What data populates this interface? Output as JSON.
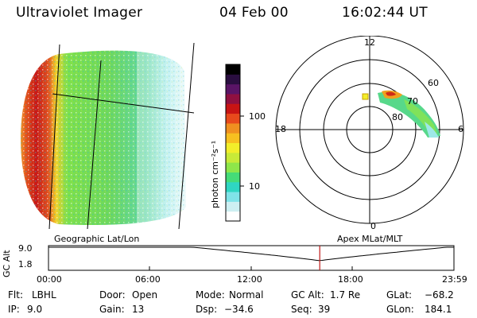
{
  "header": {
    "instrument": "Ultraviolet Imager",
    "date": "04 Feb 00",
    "time": "16:02:44 UT"
  },
  "images": {
    "geographic": {
      "caption": "Geographic Lat/Lon"
    },
    "polar": {
      "caption": "Apex MLat/MLT",
      "mlt_labels": {
        "top": "12",
        "left": "18",
        "right": "6",
        "bottom": "0"
      },
      "lat_labels": [
        "60",
        "70",
        "80"
      ]
    }
  },
  "colorbar": {
    "unit_label": "photon cm⁻²s⁻¹",
    "tick_high": "100",
    "tick_low": "10",
    "colors": [
      "#ffffff",
      "#cdeff2",
      "#7fe3e8",
      "#2fd6c2",
      "#45dc78",
      "#8ee64a",
      "#c8ea38",
      "#f2ee2a",
      "#f7c020",
      "#f09020",
      "#e84a1c",
      "#c81414",
      "#901040",
      "#5a1466",
      "#2a0e40",
      "#000000"
    ]
  },
  "timeline": {
    "y_axis_label": "GC Alt",
    "y_ticks": [
      "9.0",
      "1.8"
    ],
    "x_ticks": [
      "00:00",
      "06:00",
      "12:00",
      "18:00",
      "23:59"
    ],
    "cursor_time": "16:02:44",
    "cursor_color": "#c01818"
  },
  "info": {
    "row1": [
      {
        "label": "Flt:",
        "value": "LBHL"
      },
      {
        "label": "Door:",
        "value": "Open"
      },
      {
        "label": "Mode:",
        "value": "Normal"
      },
      {
        "label": "GC Alt:",
        "value": "1.7 Re"
      },
      {
        "label": "GLat:",
        "value": "−68.2"
      }
    ],
    "row2": [
      {
        "label": "IP:",
        "value": "9.0"
      },
      {
        "label": "Gain:",
        "value": "13"
      },
      {
        "label": "Dsp:",
        "value": "−34.6"
      },
      {
        "label": "Seq:",
        "value": "39"
      },
      {
        "label": "GLon:",
        "value": "184.1"
      }
    ]
  }
}
